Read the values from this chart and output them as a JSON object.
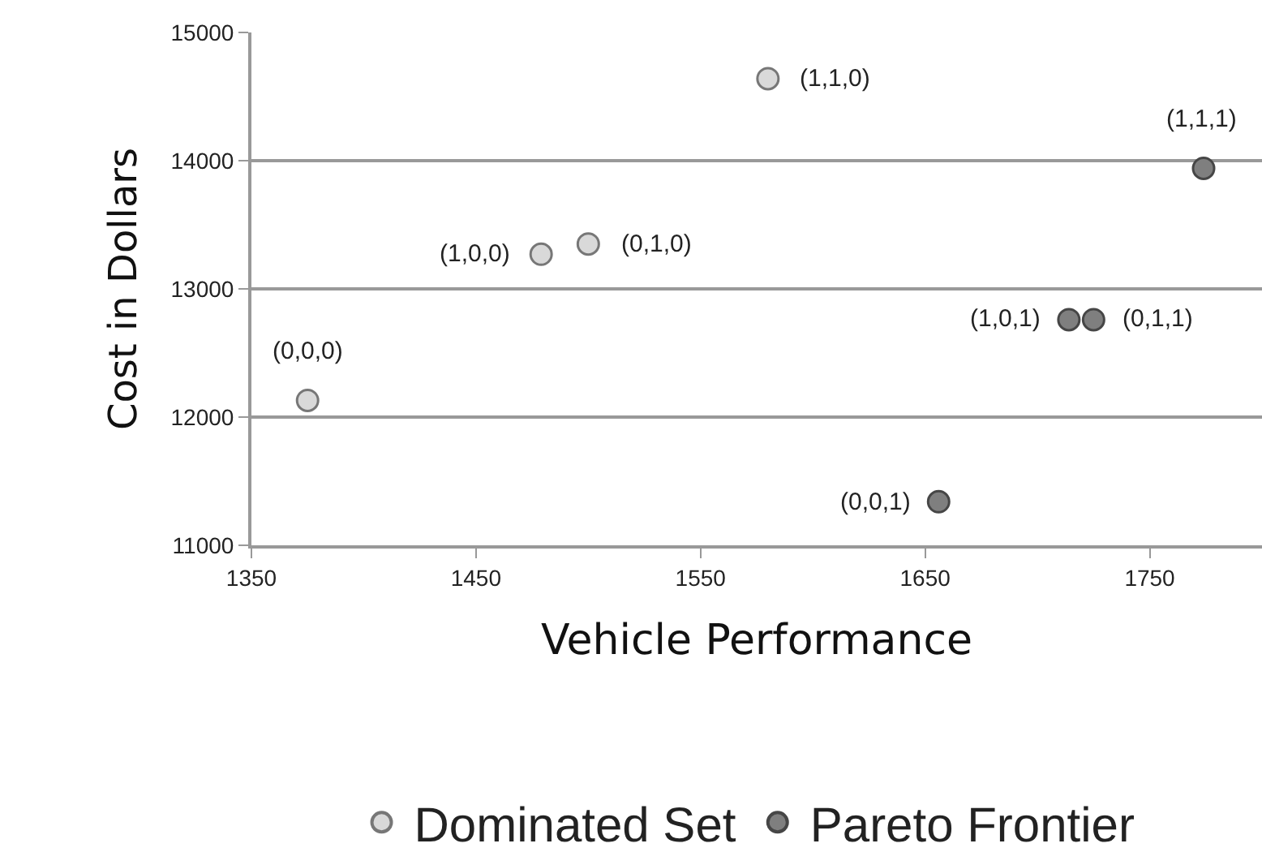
{
  "chart_data": {
    "type": "scatter",
    "xlabel": "Vehicle Performance",
    "ylabel": "Cost in Dollars",
    "series": [
      {
        "name": "Dominated Set",
        "color": "#d9d9d9",
        "x": [
          1375,
          1479,
          1500,
          1580
        ],
        "values": [
          12130,
          13270,
          13350,
          14640
        ]
      },
      {
        "name": "Pareto Frontier",
        "color": "#7f7f7f",
        "x": [
          1774,
          1714,
          1725,
          1656
        ],
        "values": [
          13940,
          12760,
          12760,
          11340
        ]
      }
    ],
    "xlim": [
      1350,
      1800
    ],
    "xticks": [
      1350,
      1450,
      1550,
      1650,
      1750
    ],
    "ylim": [
      11000,
      15000
    ],
    "yticks": [
      11000,
      12000,
      13000,
      14000,
      15000
    ],
    "grid": "y",
    "legend": "bottom",
    "marker": "circle",
    "annotations": [
      {
        "text": "(0,0,0)",
        "x": 1375,
        "y": 12130
      },
      {
        "text": "(1,0,0)",
        "x": 1479,
        "y": 13270
      },
      {
        "text": "(0,1,0)",
        "x": 1500,
        "y": 13350
      },
      {
        "text": "(1,1,0)",
        "x": 1580,
        "y": 14640
      },
      {
        "text": "(1,1,1)",
        "x": 1774,
        "y": 13940
      },
      {
        "text": "(1,0,1)",
        "x": 1714,
        "y": 12760
      },
      {
        "text": "(0,1,1)",
        "x": 1725,
        "y": 12760
      },
      {
        "text": "(0,0,1)",
        "x": 1656,
        "y": 11340
      }
    ]
  }
}
